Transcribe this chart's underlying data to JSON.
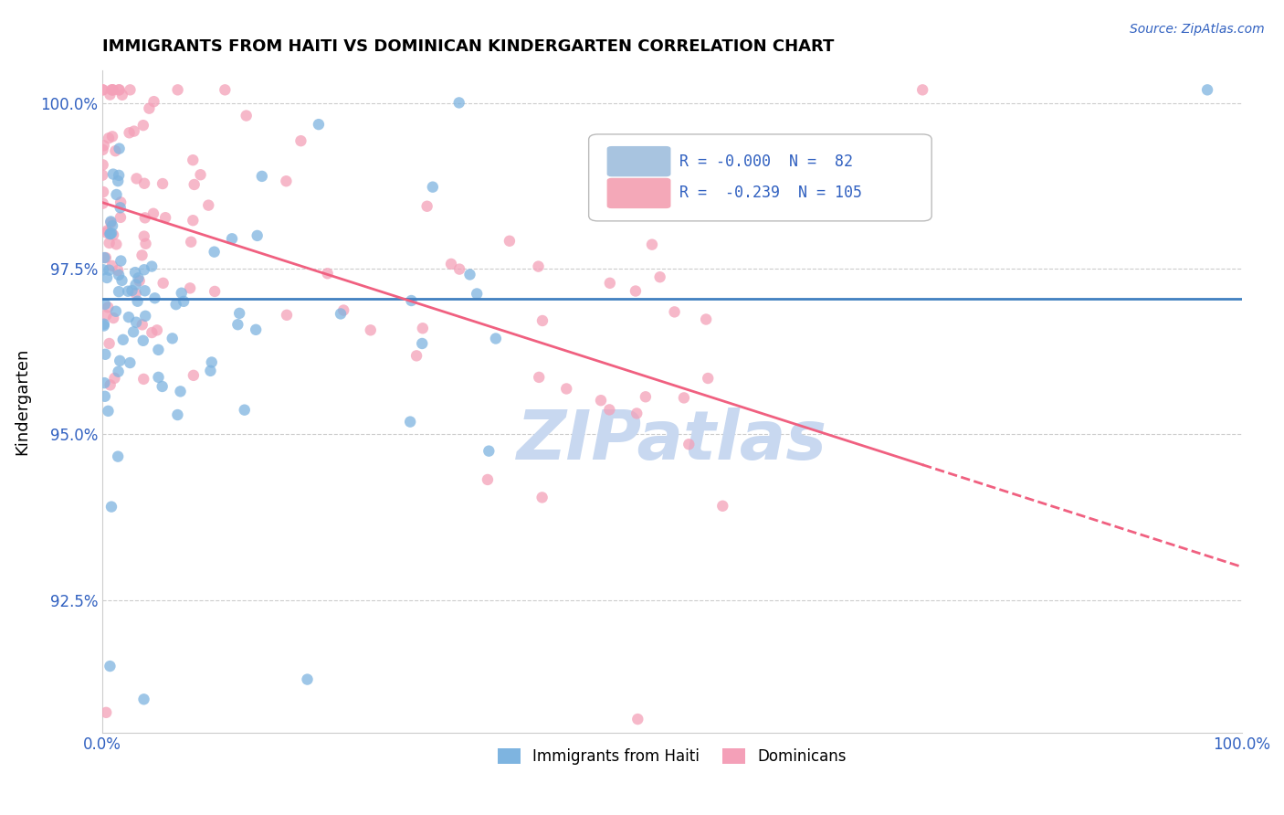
{
  "title": "IMMIGRANTS FROM HAITI VS DOMINICAN KINDERGARTEN CORRELATION CHART",
  "source": "Source: ZipAtlas.com",
  "ylabel": "Kindergarten",
  "xlim": [
    0.0,
    1.0
  ],
  "ylim": [
    0.905,
    1.005
  ],
  "yticks": [
    0.925,
    0.95,
    0.975,
    1.0
  ],
  "ytick_labels": [
    "92.5%",
    "95.0%",
    "97.5%",
    "100.0%"
  ],
  "xticks": [
    0.0,
    0.25,
    0.5,
    0.75,
    1.0
  ],
  "xtick_labels": [
    "0.0%",
    "",
    "",
    "",
    "100.0%"
  ],
  "haiti_color": "#7eb4e0",
  "dominican_color": "#f4a0b8",
  "haiti_line_color": "#4080c0",
  "dominican_line_color": "#f06080",
  "watermark_color": "#c8d8f0",
  "haiti_R": -0.0,
  "haiti_N": 82,
  "dominican_R": -0.239,
  "dominican_N": 105,
  "haiti_intercept": 0.9705,
  "haiti_slope": 0.0,
  "dominican_intercept": 0.985,
  "dominican_slope": -0.055,
  "legend_box_color_haiti": "#a8c4e0",
  "legend_box_color_dom": "#f4a8b8",
  "legend_text_color": "#3060c0",
  "tick_color": "#3060c0",
  "source_color": "#3060c0",
  "random_seed": 42
}
